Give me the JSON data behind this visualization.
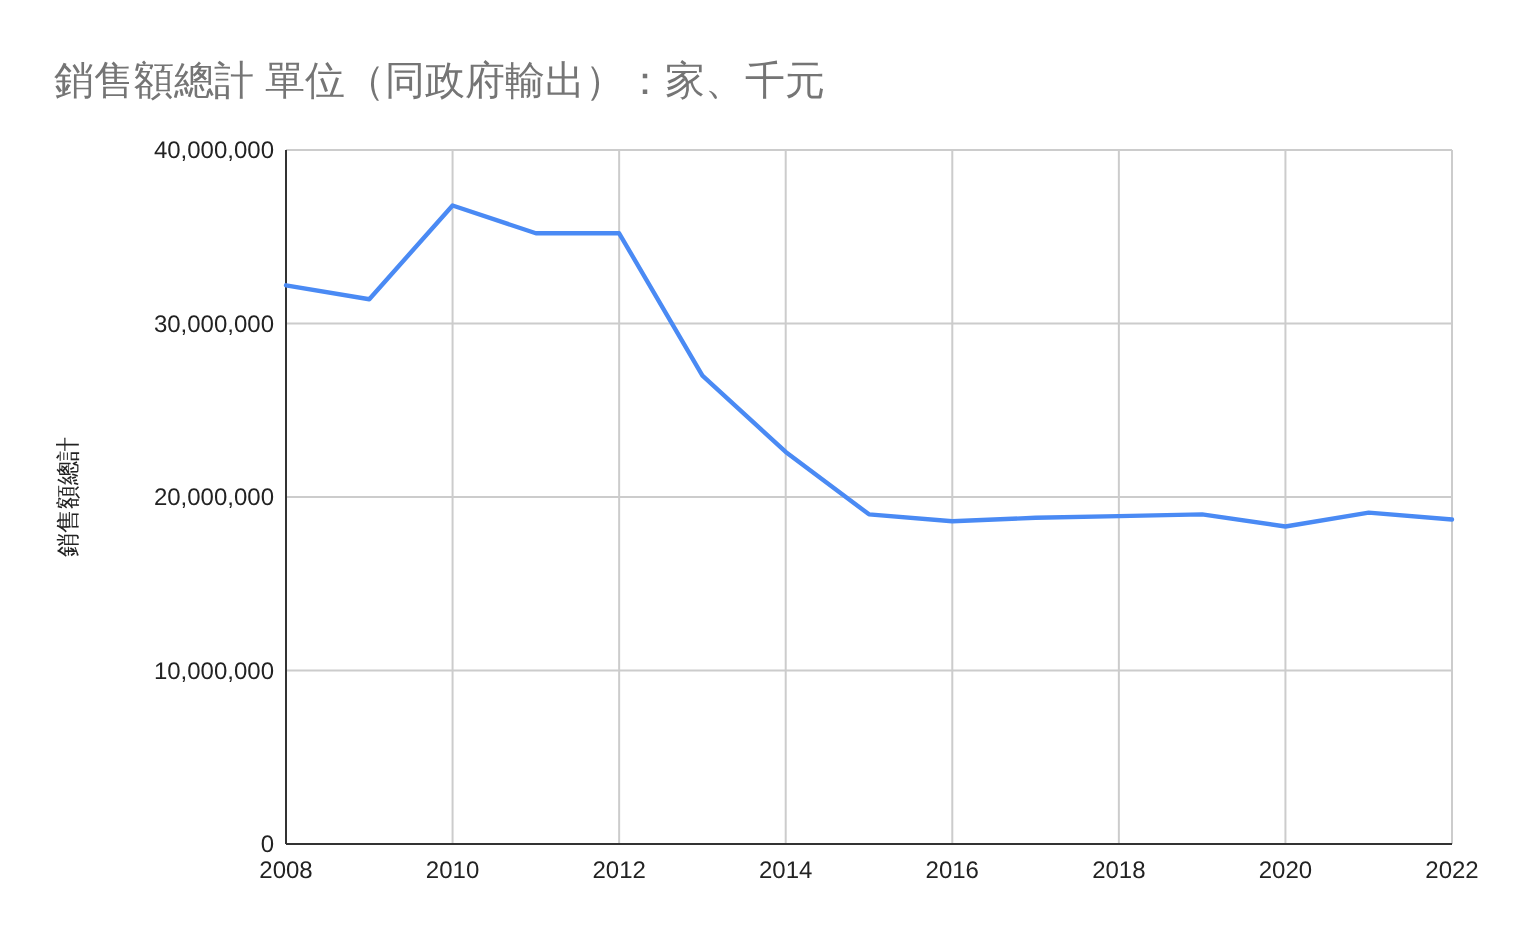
{
  "chart_data": {
    "type": "line",
    "title": "銷售額總計 單位（同政府輸出）：家、千元",
    "ylabel": "銷售額總計",
    "x": [
      2008,
      2009,
      2010,
      2011,
      2012,
      2013,
      2014,
      2015,
      2016,
      2017,
      2018,
      2019,
      2020,
      2021,
      2022
    ],
    "series": [
      {
        "color": "#4a8af4",
        "values": [
          32200000,
          31400000,
          36800000,
          35200000,
          35200000,
          27000000,
          22600000,
          19000000,
          18600000,
          18800000,
          18900000,
          19000000,
          18300000,
          19100000,
          18700000
        ]
      }
    ],
    "xlim": [
      2008,
      2022
    ],
    "xticks": [
      2008,
      2010,
      2012,
      2014,
      2016,
      2018,
      2020,
      2022
    ],
    "ylim": [
      0,
      40000000
    ],
    "yticks": [
      {
        "value": 0,
        "label": "0"
      },
      {
        "value": 10000000,
        "label": "10,000,000"
      },
      {
        "value": 20000000,
        "label": "20,000,000"
      },
      {
        "value": 30000000,
        "label": "30,000,000"
      },
      {
        "value": 40000000,
        "label": "40,000,000"
      }
    ],
    "grid": true,
    "marker": "none",
    "line_style": "solid"
  }
}
